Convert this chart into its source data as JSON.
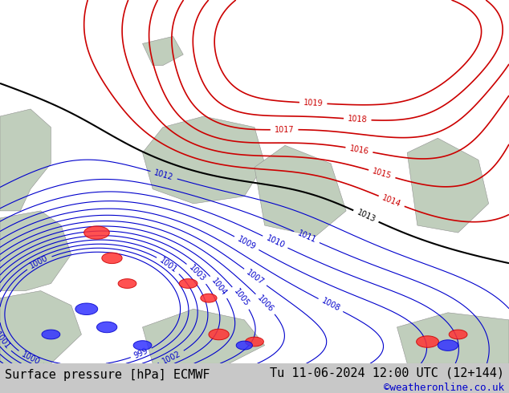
{
  "title_left": "Surface pressure [hPa] ECMWF",
  "title_right": "Tu 11-06-2024 12:00 UTC (12+144)",
  "copyright": "©weatheronline.co.uk",
  "land_color": "#c8e6a0",
  "water_color": "#c8d8c8",
  "footer_bg": "#c8c8c8",
  "title_fontsize": 11,
  "copyright_fontsize": 9,
  "copyright_color": "#0000cc",
  "title_color": "#000000",
  "contour_black_color": "#000000",
  "contour_red_color": "#cc0000",
  "contour_blue_color": "#0000cc",
  "label_fontsize": 7,
  "contour_linewidth_black": 1.5,
  "contour_linewidth_red": 1.2,
  "contour_linewidth_blue": 0.8
}
